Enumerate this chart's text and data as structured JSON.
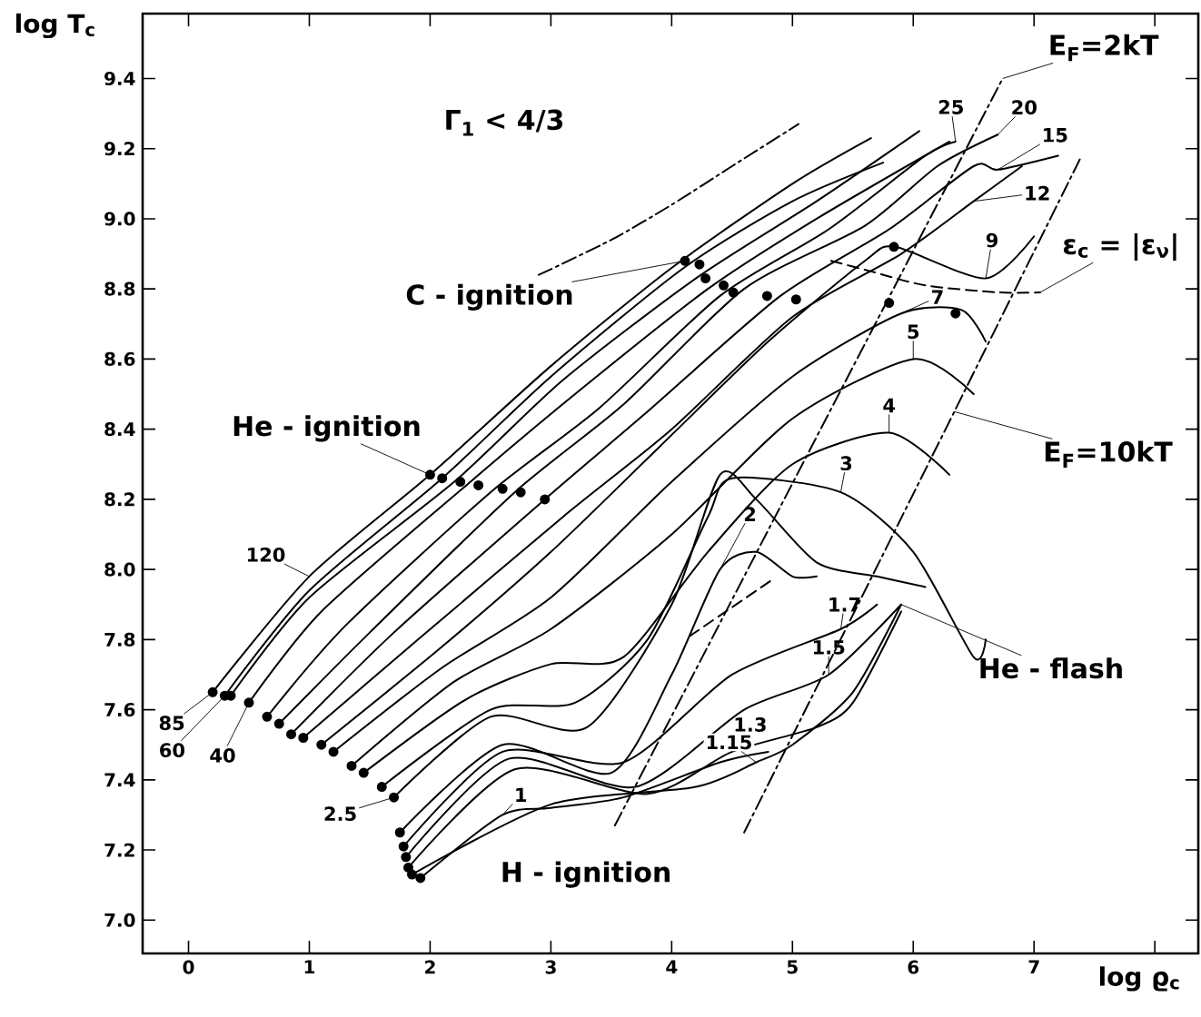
{
  "chart_data": {
    "type": "line",
    "xlabel": "log ϱ$_{c}$",
    "ylabel": "log T$_{c}$",
    "xlim": [
      -0.38,
      8.36
    ],
    "ylim": [
      6.905,
      9.585
    ],
    "xticks": [
      0,
      1,
      2,
      3,
      4,
      5,
      6,
      7,
      {
        "value": 8,
        "label": null
      }
    ],
    "yticks": [
      {
        "value": 7.0,
        "label": "7.0"
      },
      {
        "value": 7.2,
        "label": "7.2"
      },
      {
        "value": 7.4,
        "label": "7.4"
      },
      {
        "value": 7.6,
        "label": "7.6"
      },
      {
        "value": 7.8,
        "label": "7.8"
      },
      {
        "value": 8.0,
        "label": "8.0"
      },
      {
        "value": 8.2,
        "label": "8.2"
      },
      {
        "value": 8.4,
        "label": "8.4"
      },
      {
        "value": 8.6,
        "label": "8.6"
      },
      {
        "value": 8.8,
        "label": "8.8"
      },
      {
        "value": 9.0,
        "label": "9.0"
      },
      {
        "value": 9.2,
        "label": "9.2"
      },
      {
        "value": 9.4,
        "label": "9.4"
      }
    ],
    "series": [
      {
        "color": "#000000",
        "x": [
          0.2,
          1.0,
          2.0,
          3.0,
          4.0,
          5.0,
          5.65
        ],
        "values": [
          7.65,
          7.98,
          8.27,
          8.58,
          8.86,
          9.1,
          9.23
        ]
      },
      {
        "color": "#000000",
        "x": [
          0.3,
          1.0,
          2.1,
          3.0,
          4.1,
          5.0,
          5.75
        ],
        "values": [
          7.64,
          7.94,
          8.26,
          8.55,
          8.86,
          9.05,
          9.16
        ]
      },
      {
        "color": "#000000",
        "x": [
          0.35,
          1.0,
          2.2,
          3.1,
          4.2,
          5.2,
          6.05
        ],
        "values": [
          7.64,
          7.92,
          8.25,
          8.54,
          8.83,
          9.05,
          9.25
        ]
      },
      {
        "color": "#000000",
        "x": [
          0.5,
          1.1,
          2.3,
          3.2,
          4.3,
          5.2,
          6.3
        ],
        "values": [
          7.62,
          7.88,
          8.24,
          8.5,
          8.8,
          9.0,
          9.22
        ]
      },
      {
        "color": "#000000",
        "x": [
          0.65,
          1.3,
          2.5,
          3.4,
          4.4,
          5.3,
          6.1,
          6.35
        ],
        "values": [
          7.58,
          7.84,
          8.22,
          8.46,
          8.78,
          8.97,
          9.18,
          9.22
        ]
      },
      {
        "color": "#000000",
        "x": [
          0.75,
          1.5,
          2.7,
          3.6,
          4.6,
          5.6,
          6.2,
          6.7
        ],
        "values": [
          7.56,
          7.82,
          8.22,
          8.47,
          8.8,
          8.98,
          9.15,
          9.24
        ]
      },
      {
        "color": "#000000",
        "x": [
          0.85,
          1.7,
          2.95,
          3.8,
          4.9,
          5.8,
          6.5,
          6.7,
          7.2
        ],
        "values": [
          7.53,
          7.82,
          8.2,
          8.45,
          8.78,
          8.97,
          9.15,
          9.14,
          9.18
        ]
      },
      {
        "color": "#000000",
        "x": [
          0.95,
          1.9,
          3.1,
          4.0,
          5.0,
          5.9,
          6.5,
          6.9
        ],
        "values": [
          7.52,
          7.8,
          8.15,
          8.4,
          8.72,
          8.9,
          9.05,
          9.15
        ]
      },
      {
        "color": "#000000",
        "x": [
          1.1,
          2.1,
          3.0,
          3.9,
          4.8,
          5.6,
          5.85,
          6.6,
          7.0
        ],
        "values": [
          7.5,
          7.78,
          8.05,
          8.35,
          8.65,
          8.88,
          8.92,
          8.83,
          8.95
        ]
      },
      {
        "color": "#000000",
        "x": [
          1.2,
          2.1,
          3.0,
          4.0,
          5.0,
          5.9,
          6.4,
          6.6
        ],
        "values": [
          7.48,
          7.72,
          7.92,
          8.25,
          8.55,
          8.73,
          8.74,
          8.65
        ]
      },
      {
        "color": "#000000",
        "x": [
          1.35,
          2.2,
          3.0,
          4.0,
          5.0,
          6.0,
          6.5
        ],
        "values": [
          7.44,
          7.68,
          7.83,
          8.1,
          8.43,
          8.6,
          8.5
        ]
      },
      {
        "color": "#000000",
        "x": [
          1.45,
          2.3,
          3.0,
          3.6,
          4.3,
          5.0,
          5.8,
          6.3
        ],
        "values": [
          7.42,
          7.63,
          7.73,
          7.75,
          8.05,
          8.3,
          8.39,
          8.27
        ]
      },
      {
        "color": "#000000",
        "x": [
          1.6,
          2.5,
          3.2,
          3.8,
          4.3,
          4.5,
          5.4,
          6.0,
          6.5,
          6.6
        ],
        "values": [
          7.38,
          7.6,
          7.62,
          7.8,
          8.15,
          8.26,
          8.22,
          8.05,
          7.75,
          7.8
        ]
      },
      {
        "color": "#000000",
        "x": [
          1.7,
          2.5,
          3.3,
          4.0,
          4.4,
          4.7,
          5.2,
          5.7,
          6.1
        ],
        "values": [
          7.35,
          7.58,
          7.55,
          7.9,
          8.27,
          8.2,
          8.02,
          7.98,
          7.95
        ]
      },
      {
        "color": "#000000",
        "x": [
          1.75,
          2.6,
          3.5,
          4.0,
          4.4,
          4.7,
          5.0,
          5.2
        ],
        "values": [
          7.25,
          7.5,
          7.42,
          7.7,
          8.0,
          8.05,
          7.98,
          7.98
        ]
      },
      {
        "color": "#000000",
        "x": [
          1.78,
          2.6,
          3.6,
          4.5,
          5.4,
          5.7
        ],
        "values": [
          7.21,
          7.48,
          7.45,
          7.7,
          7.83,
          7.9
        ]
      },
      {
        "color": "#000000",
        "x": [
          1.8,
          2.65,
          3.7,
          4.6,
          5.3,
          5.9
        ],
        "values": [
          7.18,
          7.46,
          7.38,
          7.6,
          7.7,
          7.9
        ]
      },
      {
        "color": "#000000",
        "x": [
          1.82,
          2.7,
          3.8,
          4.5,
          5.2,
          5.5,
          5.9
        ],
        "values": [
          7.15,
          7.43,
          7.36,
          7.48,
          7.55,
          7.62,
          7.88
        ]
      },
      {
        "color": "#000000",
        "x": [
          1.85,
          3.0,
          4.2,
          4.7,
          5.0,
          5.5,
          5.9
        ],
        "values": [
          7.13,
          7.33,
          7.38,
          7.45,
          7.5,
          7.65,
          7.9
        ]
      },
      {
        "color": "#000000",
        "x": [
          1.92,
          2.6,
          3.0,
          3.6,
          4.4,
          4.8
        ],
        "values": [
          7.12,
          7.3,
          7.32,
          7.35,
          7.45,
          7.48
        ]
      },
      {
        "color": "#000000",
        "line_style": "dashdot",
        "x": [
          2.9,
          3.5,
          4.0,
          4.5,
          5.05
        ],
        "values": [
          8.84,
          8.94,
          9.04,
          9.15,
          9.27
        ]
      },
      {
        "color": "#000000",
        "line_style": "dashdot",
        "x": [
          3.53,
          6.74
        ],
        "values": [
          7.27,
          9.4
        ]
      },
      {
        "color": "#000000",
        "line_style": "dashdot",
        "x": [
          4.6,
          6.34,
          7.38
        ],
        "values": [
          7.25,
          8.45,
          9.17
        ]
      },
      {
        "color": "#000000",
        "line_style": "dashed",
        "x": [
          5.32,
          5.65,
          6.1,
          6.71,
          7.05
        ],
        "values": [
          8.88,
          8.85,
          8.81,
          8.79,
          8.79
        ]
      },
      {
        "color": "#000000",
        "line_style": "dashed",
        "x": [
          4.15,
          4.83
        ],
        "values": [
          7.81,
          7.97
        ]
      },
      {
        "type": "scatter",
        "color": "#000000",
        "x": [
          0.2,
          0.3,
          0.35,
          0.5,
          0.65,
          0.75,
          0.85,
          0.95,
          1.1,
          1.2,
          1.35,
          1.45,
          1.6,
          1.7,
          1.75,
          1.78,
          1.8,
          1.82,
          1.85,
          1.92
        ],
        "values": [
          7.65,
          7.64,
          7.64,
          7.62,
          7.58,
          7.56,
          7.53,
          7.52,
          7.5,
          7.48,
          7.44,
          7.42,
          7.38,
          7.35,
          7.25,
          7.21,
          7.18,
          7.15,
          7.13,
          7.12
        ]
      },
      {
        "type": "scatter",
        "color": "#000000",
        "x": [
          2.0,
          2.1,
          2.25,
          2.4,
          2.6,
          2.75,
          2.95
        ],
        "values": [
          8.27,
          8.26,
          8.25,
          8.24,
          8.23,
          8.22,
          8.2
        ]
      },
      {
        "type": "scatter",
        "color": "#000000",
        "x": [
          4.11,
          4.23,
          4.28,
          4.43,
          4.51,
          4.79,
          5.03,
          5.8,
          5.84,
          6.35
        ],
        "values": [
          8.88,
          8.87,
          8.83,
          8.81,
          8.79,
          8.78,
          8.77,
          8.76,
          8.92,
          8.73
        ]
      }
    ],
    "annotations": [
      "Γ$_{1}$ < 4/3",
      {
        "text": "C - ignition",
        "x": 4.11,
        "y": 8.88
      },
      {
        "text": "He - ignition",
        "x": 2.0,
        "y": 8.27
      },
      "H - ignition",
      {
        "text": "He - flash",
        "x": 5.9,
        "y": 7.9
      },
      {
        "text": "E$_{F}$=2kT",
        "x": 6.74,
        "y": 9.4
      },
      {
        "text": "E$_{F}$=10kT",
        "x": 6.34,
        "y": 8.45
      },
      {
        "text": "ε$_{c}$ = |ε$_{ν}$|",
        "x": 7.05,
        "y": 8.79
      },
      {
        "text": "120",
        "x": 1.0,
        "y": 7.98
      },
      {
        "text": "85",
        "x": 0.2,
        "y": 7.65
      },
      {
        "text": "60",
        "x": 0.3,
        "y": 7.64
      },
      {
        "text": "40",
        "x": 0.5,
        "y": 7.62
      },
      {
        "text": "2.5",
        "x": 1.7,
        "y": 7.35
      },
      {
        "text": "1",
        "x": 2.6,
        "y": 7.3
      },
      {
        "text": "25",
        "x": 6.35,
        "y": 9.22
      },
      {
        "text": "20",
        "x": 6.7,
        "y": 9.24
      },
      {
        "text": "15",
        "x": 6.7,
        "y": 9.14
      },
      {
        "text": "12",
        "x": 6.5,
        "y": 9.05
      },
      {
        "text": "9",
        "x": 6.6,
        "y": 8.83
      },
      {
        "text": "7",
        "x": 5.9,
        "y": 8.73
      },
      {
        "text": "5",
        "x": 6.0,
        "y": 8.6
      },
      {
        "text": "4",
        "x": 5.8,
        "y": 8.39
      },
      {
        "text": "3",
        "x": 5.4,
        "y": 8.22
      },
      {
        "text": "2",
        "x": 4.4,
        "y": 8.0
      },
      {
        "text": "1.7",
        "x": 5.4,
        "y": 7.83
      },
      {
        "text": "1.5",
        "x": 5.3,
        "y": 7.7
      },
      {
        "text": "1.3",
        "x": 4.5,
        "y": 7.48
      },
      {
        "text": "1.15",
        "x": 4.7,
        "y": 7.45
      }
    ]
  }
}
